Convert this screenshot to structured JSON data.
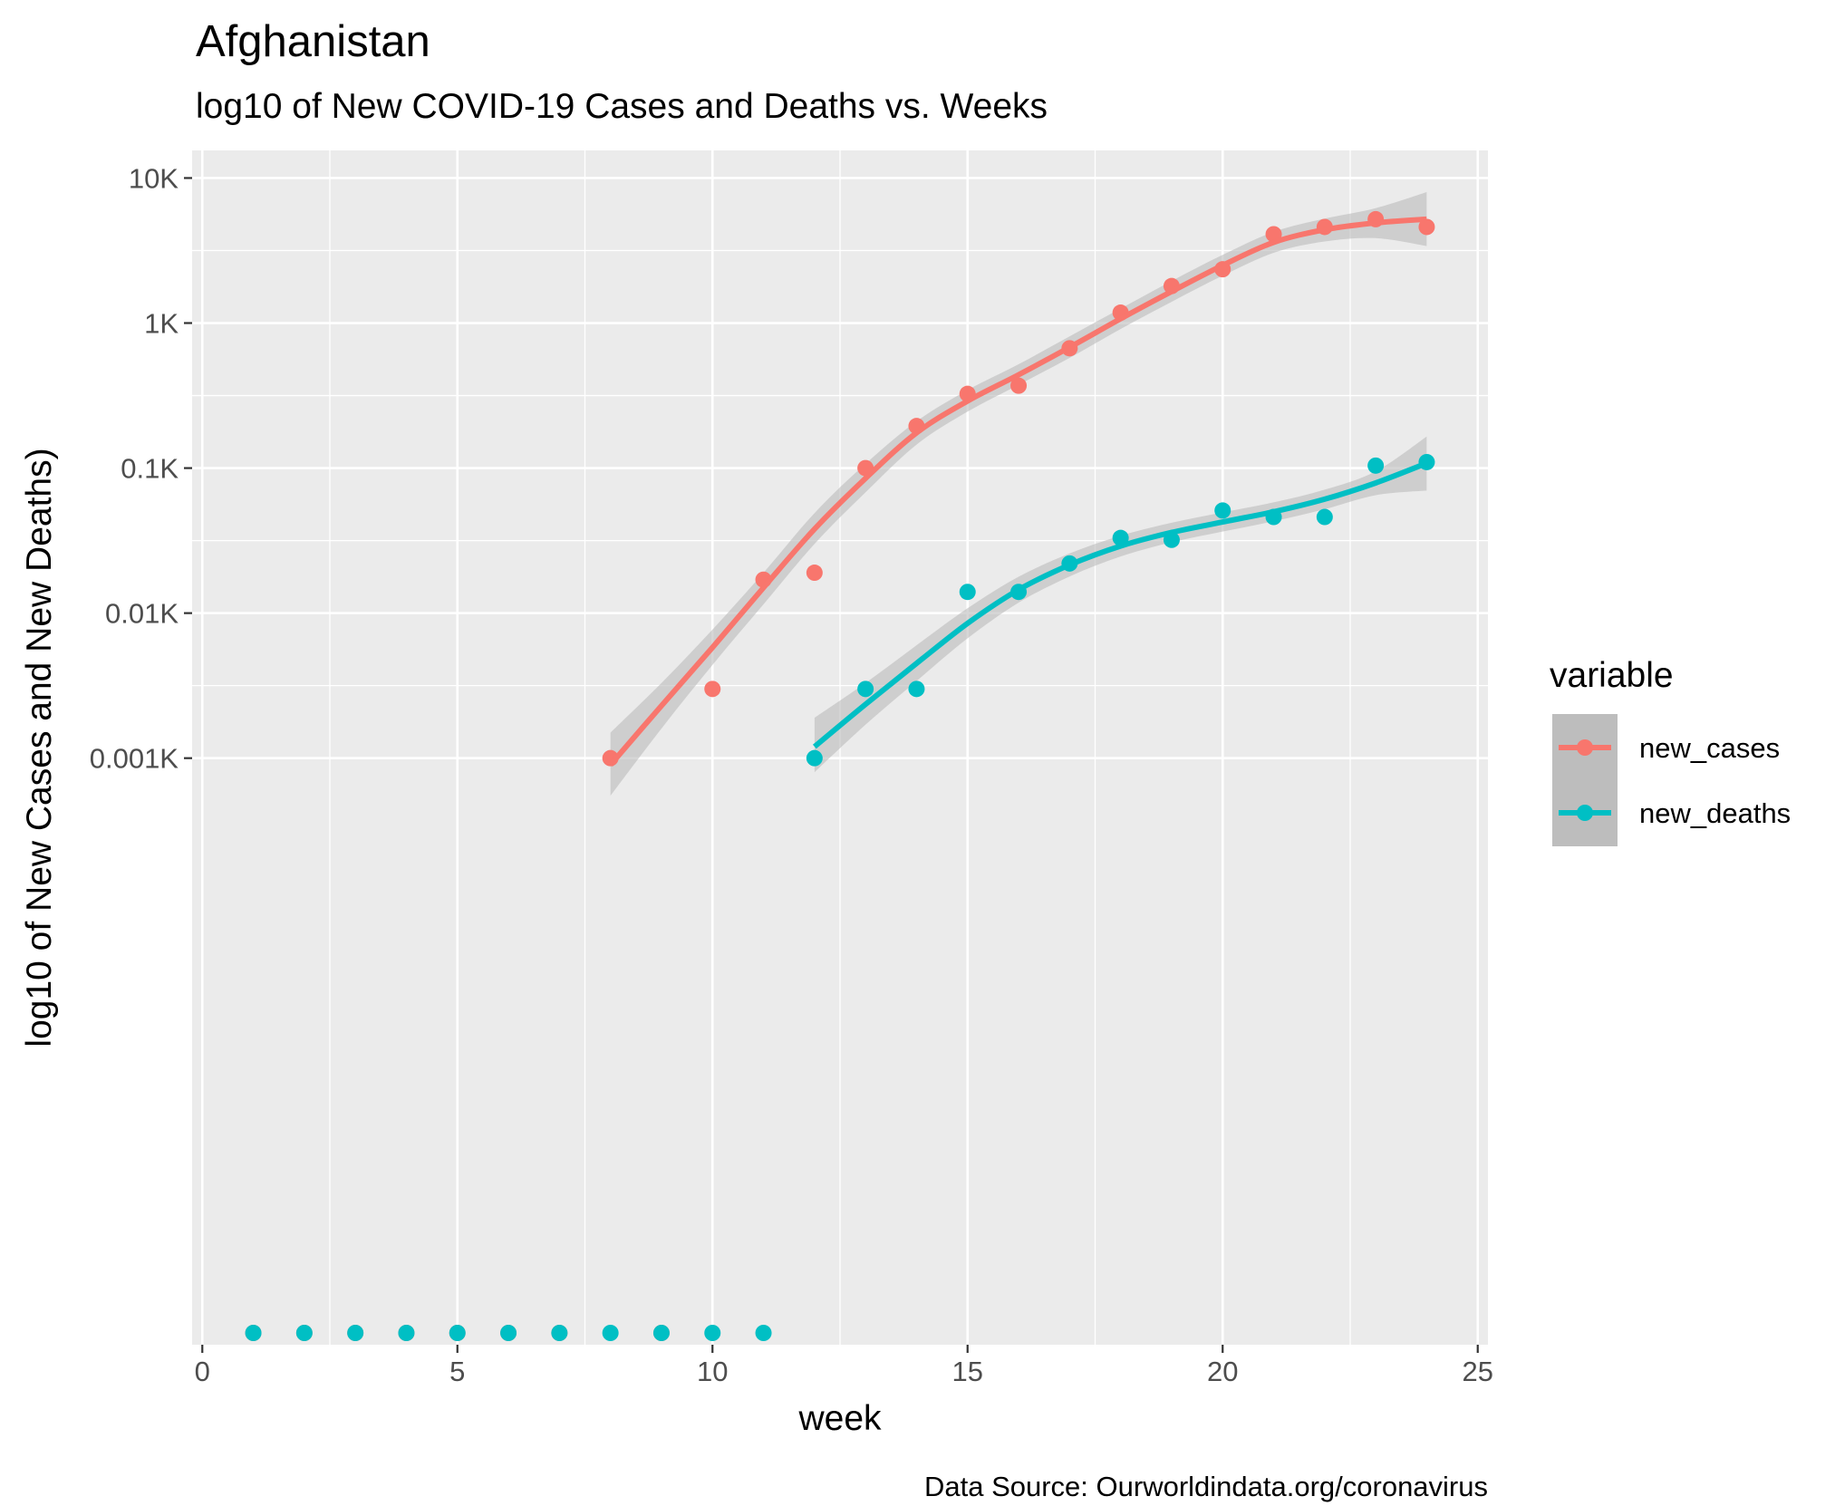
{
  "chart_data": {
    "type": "scatter",
    "title": "Afghanistan",
    "subtitle": "log10 of New COVID-19 Cases and Deaths vs. Weeks",
    "xlabel": "week",
    "ylabel": "log10 of New Cases and New Deaths)",
    "caption": "Data Source: Ourworldindata.org/coronavirus",
    "legend_title": "variable",
    "legend_position": "right",
    "grid": true,
    "y_scale": "log10",
    "xlim": [
      -0.2,
      25.2
    ],
    "ylim": [
      9.03e-05,
      15500
    ],
    "x_ticks": [
      0,
      5,
      10,
      15,
      20,
      25
    ],
    "x_tick_labels": [
      "0",
      "5",
      "10",
      "15",
      "20",
      "25"
    ],
    "y_ticks": [
      1,
      10,
      100,
      1000,
      10000
    ],
    "y_tick_labels": [
      "0.001K",
      "0.01K",
      "0.1K",
      "1K",
      "10K"
    ],
    "colors": {
      "panel": "#ebebeb",
      "grid": "#ffffff",
      "ribbon": "#bdbdbd",
      "new_cases": "#f8766d",
      "new_deaths": "#00bfc4"
    },
    "series": [
      {
        "name": "new_cases",
        "color": "#f8766d",
        "points": [
          {
            "x": 1,
            "y": 0
          },
          {
            "x": 2,
            "y": 0
          },
          {
            "x": 3,
            "y": 0
          },
          {
            "x": 4,
            "y": 0
          },
          {
            "x": 5,
            "y": 0
          },
          {
            "x": 6,
            "y": 0
          },
          {
            "x": 7,
            "y": 0
          },
          {
            "x": 8,
            "y": 1
          },
          {
            "x": 9,
            "y": 0
          },
          {
            "x": 10,
            "y": 3
          },
          {
            "x": 11,
            "y": 17
          },
          {
            "x": 12,
            "y": 19
          },
          {
            "x": 13,
            "y": 100
          },
          {
            "x": 14,
            "y": 195
          },
          {
            "x": 15,
            "y": 325
          },
          {
            "x": 16,
            "y": 370
          },
          {
            "x": 17,
            "y": 670
          },
          {
            "x": 18,
            "y": 1180
          },
          {
            "x": 19,
            "y": 1800
          },
          {
            "x": 20,
            "y": 2350
          },
          {
            "x": 21,
            "y": 4100
          },
          {
            "x": 22,
            "y": 4600
          },
          {
            "x": 23,
            "y": 5200
          },
          {
            "x": 24,
            "y": 4600
          }
        ],
        "smooth": [
          {
            "x": 8,
            "y": 0.9
          },
          {
            "x": 9,
            "y": 2.3
          },
          {
            "x": 10,
            "y": 5.8
          },
          {
            "x": 11,
            "y": 15
          },
          {
            "x": 12,
            "y": 38
          },
          {
            "x": 13,
            "y": 85
          },
          {
            "x": 14,
            "y": 175
          },
          {
            "x": 15,
            "y": 290
          },
          {
            "x": 16,
            "y": 440
          },
          {
            "x": 17,
            "y": 680
          },
          {
            "x": 18,
            "y": 1070
          },
          {
            "x": 19,
            "y": 1650
          },
          {
            "x": 20,
            "y": 2500
          },
          {
            "x": 21,
            "y": 3600
          },
          {
            "x": 22,
            "y": 4400
          },
          {
            "x": 23,
            "y": 4900
          },
          {
            "x": 24,
            "y": 5200
          }
        ],
        "band_upper": [
          {
            "x": 8,
            "y": 1.5
          },
          {
            "x": 9,
            "y": 3.3
          },
          {
            "x": 10,
            "y": 7.7
          },
          {
            "x": 11,
            "y": 19
          },
          {
            "x": 12,
            "y": 49
          },
          {
            "x": 13,
            "y": 107
          },
          {
            "x": 14,
            "y": 210
          },
          {
            "x": 15,
            "y": 345
          },
          {
            "x": 16,
            "y": 520
          },
          {
            "x": 17,
            "y": 810
          },
          {
            "x": 18,
            "y": 1260
          },
          {
            "x": 19,
            "y": 1950
          },
          {
            "x": 20,
            "y": 2950
          },
          {
            "x": 21,
            "y": 4250
          },
          {
            "x": 22,
            "y": 5250
          },
          {
            "x": 23,
            "y": 6200
          },
          {
            "x": 24,
            "y": 8000
          }
        ],
        "band_lower": [
          {
            "x": 8,
            "y": 0.55
          },
          {
            "x": 9,
            "y": 1.6
          },
          {
            "x": 10,
            "y": 4.4
          },
          {
            "x": 11,
            "y": 11.5
          },
          {
            "x": 12,
            "y": 30
          },
          {
            "x": 13,
            "y": 68
          },
          {
            "x": 14,
            "y": 145
          },
          {
            "x": 15,
            "y": 245
          },
          {
            "x": 16,
            "y": 375
          },
          {
            "x": 17,
            "y": 575
          },
          {
            "x": 18,
            "y": 910
          },
          {
            "x": 19,
            "y": 1400
          },
          {
            "x": 20,
            "y": 2120
          },
          {
            "x": 21,
            "y": 3050
          },
          {
            "x": 22,
            "y": 3650
          },
          {
            "x": 23,
            "y": 3850
          },
          {
            "x": 24,
            "y": 3400
          }
        ]
      },
      {
        "name": "new_deaths",
        "color": "#00bfc4",
        "points": [
          {
            "x": 1,
            "y": 0
          },
          {
            "x": 2,
            "y": 0
          },
          {
            "x": 3,
            "y": 0
          },
          {
            "x": 4,
            "y": 0
          },
          {
            "x": 5,
            "y": 0
          },
          {
            "x": 6,
            "y": 0
          },
          {
            "x": 7,
            "y": 0
          },
          {
            "x": 8,
            "y": 0
          },
          {
            "x": 9,
            "y": 0
          },
          {
            "x": 10,
            "y": 0
          },
          {
            "x": 11,
            "y": 0
          },
          {
            "x": 12,
            "y": 1
          },
          {
            "x": 13,
            "y": 3
          },
          {
            "x": 14,
            "y": 3
          },
          {
            "x": 15,
            "y": 14
          },
          {
            "x": 16,
            "y": 14
          },
          {
            "x": 17,
            "y": 22
          },
          {
            "x": 18,
            "y": 33
          },
          {
            "x": 19,
            "y": 32
          },
          {
            "x": 20,
            "y": 51
          },
          {
            "x": 21,
            "y": 46
          },
          {
            "x": 22,
            "y": 46
          },
          {
            "x": 23,
            "y": 104
          },
          {
            "x": 24,
            "y": 110
          }
        ],
        "smooth": [
          {
            "x": 12,
            "y": 1.2
          },
          {
            "x": 13,
            "y": 2.35
          },
          {
            "x": 14,
            "y": 4.5
          },
          {
            "x": 15,
            "y": 8.5
          },
          {
            "x": 16,
            "y": 14.5
          },
          {
            "x": 17,
            "y": 21.5
          },
          {
            "x": 18,
            "y": 29
          },
          {
            "x": 19,
            "y": 36
          },
          {
            "x": 20,
            "y": 42.5
          },
          {
            "x": 21,
            "y": 50
          },
          {
            "x": 22,
            "y": 61
          },
          {
            "x": 23,
            "y": 79
          },
          {
            "x": 24,
            "y": 108
          }
        ],
        "band_upper": [
          {
            "x": 12,
            "y": 1.9
          },
          {
            "x": 13,
            "y": 3.3
          },
          {
            "x": 14,
            "y": 6
          },
          {
            "x": 15,
            "y": 10.8
          },
          {
            "x": 16,
            "y": 17.8
          },
          {
            "x": 17,
            "y": 25.8
          },
          {
            "x": 18,
            "y": 34.2
          },
          {
            "x": 19,
            "y": 42
          },
          {
            "x": 20,
            "y": 49.5
          },
          {
            "x": 21,
            "y": 58
          },
          {
            "x": 22,
            "y": 71
          },
          {
            "x": 23,
            "y": 95
          },
          {
            "x": 24,
            "y": 165
          }
        ],
        "band_lower": [
          {
            "x": 12,
            "y": 0.8
          },
          {
            "x": 13,
            "y": 1.7
          },
          {
            "x": 14,
            "y": 3.4
          },
          {
            "x": 15,
            "y": 6.7
          },
          {
            "x": 16,
            "y": 11.8
          },
          {
            "x": 17,
            "y": 17.9
          },
          {
            "x": 18,
            "y": 24.6
          },
          {
            "x": 19,
            "y": 30.8
          },
          {
            "x": 20,
            "y": 36.5
          },
          {
            "x": 21,
            "y": 43
          },
          {
            "x": 22,
            "y": 52
          },
          {
            "x": 23,
            "y": 65
          },
          {
            "x": 24,
            "y": 70
          }
        ]
      }
    ]
  }
}
